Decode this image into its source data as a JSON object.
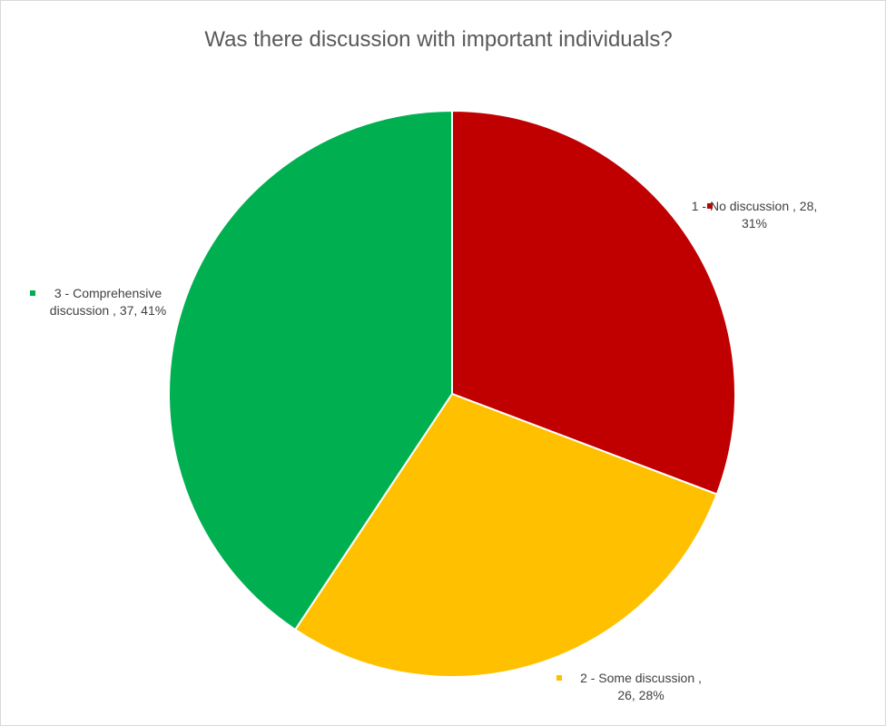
{
  "chart_data": {
    "type": "pie",
    "title": "Was there discussion with important individuals?",
    "slices": [
      {
        "label": "1 - No discussion",
        "value": 28,
        "percent": 31,
        "color": "#C00000"
      },
      {
        "label": "2 - Some discussion",
        "value": 26,
        "percent": 28,
        "color": "#FFC000"
      },
      {
        "label": "3 - Comprehensive discussion",
        "value": 37,
        "percent": 41,
        "color": "#00B050"
      }
    ],
    "data_label_lines": [
      [
        "1 - No discussion  , 28,",
        "31%"
      ],
      [
        "2 - Some discussion  ,",
        "26, 28%"
      ],
      [
        "3 - Comprehensive",
        "discussion  , 37, 41%"
      ]
    ],
    "legend": "none",
    "slice_border_color": "#FFFFFF"
  }
}
